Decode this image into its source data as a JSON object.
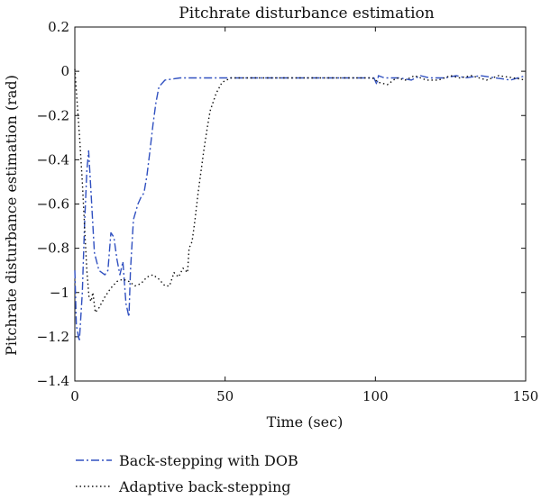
{
  "chart_data": {
    "type": "line",
    "title": "Pitchrate disturbance estimation",
    "xlabel": "Time (sec)",
    "ylabel": "Pitchrate disturbance estimation (rad)",
    "xlim": [
      0,
      150
    ],
    "ylim": [
      -1.4,
      0.2
    ],
    "xticks": [
      0,
      50,
      100,
      150
    ],
    "yticks": [
      0.2,
      0,
      -0.2,
      -0.4,
      -0.6,
      -0.8,
      -1,
      -1.2,
      -1.4
    ],
    "ytick_labels": [
      "0.2",
      "0",
      "−0.2",
      "−0.4",
      "−0.6",
      "−0.8",
      "−1",
      "−1.2",
      "−1.4"
    ],
    "grid": false,
    "legend_position": "bottom-left (below plot)",
    "series": [
      {
        "name": "Back-stepping with DOB",
        "color": "#3050c0",
        "style": "dash-dot",
        "points": [
          [
            0,
            -0.9
          ],
          [
            0.5,
            -1.15
          ],
          [
            1.5,
            -1.22
          ],
          [
            2.5,
            -1.0
          ],
          [
            3.2,
            -0.7
          ],
          [
            4,
            -0.45
          ],
          [
            4.6,
            -0.36
          ],
          [
            5.4,
            -0.55
          ],
          [
            6.5,
            -0.82
          ],
          [
            8,
            -0.9
          ],
          [
            10,
            -0.92
          ],
          [
            11,
            -0.9
          ],
          [
            12,
            -0.73
          ],
          [
            13,
            -0.75
          ],
          [
            14,
            -0.85
          ],
          [
            15,
            -0.92
          ],
          [
            16,
            -0.86
          ],
          [
            17,
            -1.05
          ],
          [
            18,
            -1.11
          ],
          [
            18.5,
            -0.9
          ],
          [
            19.5,
            -0.67
          ],
          [
            21,
            -0.6
          ],
          [
            22,
            -0.57
          ],
          [
            23,
            -0.55
          ],
          [
            24,
            -0.47
          ],
          [
            25,
            -0.36
          ],
          [
            26,
            -0.24
          ],
          [
            27,
            -0.14
          ],
          [
            28,
            -0.07
          ],
          [
            30,
            -0.04
          ],
          [
            35,
            -0.03
          ],
          [
            50,
            -0.03
          ],
          [
            80,
            -0.03
          ],
          [
            99.5,
            -0.03
          ],
          [
            100.5,
            -0.06
          ],
          [
            101,
            -0.02
          ],
          [
            103,
            -0.03
          ],
          [
            108,
            -0.03
          ],
          [
            112,
            -0.04
          ],
          [
            115,
            -0.02
          ],
          [
            118,
            -0.03
          ],
          [
            123,
            -0.03
          ],
          [
            127,
            -0.02
          ],
          [
            130,
            -0.03
          ],
          [
            135,
            -0.02
          ],
          [
            140,
            -0.03
          ],
          [
            145,
            -0.04
          ],
          [
            150,
            -0.02
          ]
        ]
      },
      {
        "name": "Adaptive back-stepping",
        "color": "#111111",
        "style": "dotted",
        "points": [
          [
            0,
            0.01
          ],
          [
            0.8,
            -0.15
          ],
          [
            1.6,
            -0.3
          ],
          [
            2.5,
            -0.5
          ],
          [
            3.3,
            -0.72
          ],
          [
            4,
            -0.9
          ],
          [
            4.7,
            -1.02
          ],
          [
            5.4,
            -1.04
          ],
          [
            6,
            -1.0
          ],
          [
            6.8,
            -1.09
          ],
          [
            8,
            -1.07
          ],
          [
            10,
            -1.02
          ],
          [
            12,
            -0.98
          ],
          [
            14,
            -0.95
          ],
          [
            16,
            -0.94
          ],
          [
            18,
            -0.95
          ],
          [
            20,
            -0.97
          ],
          [
            22,
            -0.96
          ],
          [
            24,
            -0.93
          ],
          [
            26,
            -0.92
          ],
          [
            28,
            -0.94
          ],
          [
            30,
            -0.97
          ],
          [
            31.5,
            -0.97
          ],
          [
            33,
            -0.91
          ],
          [
            34.5,
            -0.93
          ],
          [
            36,
            -0.89
          ],
          [
            37.5,
            -0.91
          ],
          [
            38,
            -0.8
          ],
          [
            39,
            -0.77
          ],
          [
            40,
            -0.67
          ],
          [
            41,
            -0.55
          ],
          [
            42,
            -0.45
          ],
          [
            43,
            -0.35
          ],
          [
            44,
            -0.26
          ],
          [
            45,
            -0.18
          ],
          [
            47,
            -0.1
          ],
          [
            49,
            -0.05
          ],
          [
            52,
            -0.03
          ],
          [
            60,
            -0.03
          ],
          [
            80,
            -0.03
          ],
          [
            99,
            -0.03
          ],
          [
            101,
            -0.05
          ],
          [
            104,
            -0.06
          ],
          [
            107,
            -0.03
          ],
          [
            110,
            -0.04
          ],
          [
            113,
            -0.02
          ],
          [
            117,
            -0.04
          ],
          [
            121,
            -0.04
          ],
          [
            125,
            -0.02
          ],
          [
            128,
            -0.03
          ],
          [
            132,
            -0.02
          ],
          [
            137,
            -0.04
          ],
          [
            141,
            -0.02
          ],
          [
            146,
            -0.03
          ],
          [
            150,
            -0.04
          ]
        ]
      }
    ]
  }
}
